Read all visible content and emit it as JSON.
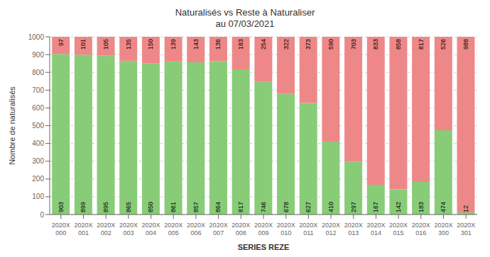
{
  "chart_data": {
    "type": "bar",
    "title": "Naturalisés vs Reste à Naturaliser\nau 07/03/2021",
    "x_label": "SERIES REZE",
    "y_label": "Nombre de naturalisés",
    "categories": [
      "2020X\n000",
      "2020X\n001",
      "2020X\n002",
      "2020X\n003",
      "2020X\n004",
      "2020X\n005",
      "2020X\n006",
      "2020X\n007",
      "2020X\n008",
      "2020X\n009",
      "2020X\n010",
      "2020X\n011",
      "2020X\n012",
      "2020X\n013",
      "2020X\n014",
      "2020X\n015",
      "2020X\n016",
      "2020X\n300",
      "2020X\n301"
    ],
    "series": [
      {
        "color": "#88CC77",
        "values": [
          903,
          899,
          895,
          865,
          850,
          861,
          857,
          864,
          817,
          746,
          678,
          627,
          410,
          297,
          167,
          142,
          183,
          474,
          12
        ]
      },
      {
        "color": "#EE8888",
        "values": [
          97,
          101,
          105,
          135,
          150,
          139,
          143,
          136,
          183,
          254,
          322,
          373,
          590,
          703,
          833,
          858,
          817,
          526,
          988
        ]
      }
    ],
    "stacked": true,
    "data_labels": true,
    "ylim": [
      0,
      1000
    ],
    "yticks": [
      0,
      100,
      200,
      300,
      400,
      500,
      600,
      700,
      800,
      900,
      1000
    ],
    "grid": true
  }
}
